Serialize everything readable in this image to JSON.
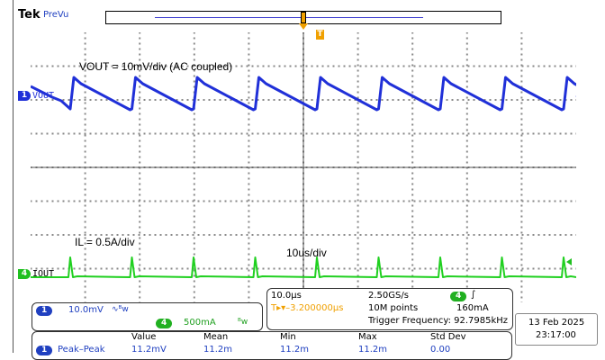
{
  "header": {
    "brand": "Tek",
    "mode": "PreVu"
  },
  "trigger_position_marker": "T",
  "colors": {
    "ch1": "#2030d8",
    "ch4": "#20d020",
    "trigger": "#f0a000",
    "measure_badge": "#2040c0"
  },
  "annotations": {
    "vout": "VOUT = 10mV/div (AC coupled)",
    "il": "IL = 0.5A/div",
    "timebase": "10us/div"
  },
  "channels": [
    {
      "number": "1",
      "label": "VOUT"
    },
    {
      "number": "4",
      "label": "IOUT"
    }
  ],
  "ch_settings": {
    "ch1_badge": "1",
    "ch1_scale": "10.0mV",
    "ch1_coupling": "∿ᴮw",
    "ch4_badge": "4",
    "ch4_scale": "500mA",
    "ch4_coupling": "ᴮw"
  },
  "horizontal": {
    "scale": "10.0µs",
    "sample_rate": "2.50GS/s",
    "trig_ch": "4",
    "trig_slope": "∫",
    "delay": "T▸▾–3.200000µs",
    "record": "10M points",
    "trig_level": "160mA",
    "trig_freq": "Trigger Frequency: 92.7985kHz"
  },
  "datetime": {
    "date": "13 Feb  2025",
    "time": "23:17:00"
  },
  "measurement": {
    "headers": [
      "Value",
      "Mean",
      "Min",
      "Max",
      "Std Dev"
    ],
    "badge": "1",
    "name": "Peak–Peak",
    "values": [
      "11.2mV",
      "11.2m",
      "11.2m",
      "11.2m",
      "0.00"
    ]
  }
}
